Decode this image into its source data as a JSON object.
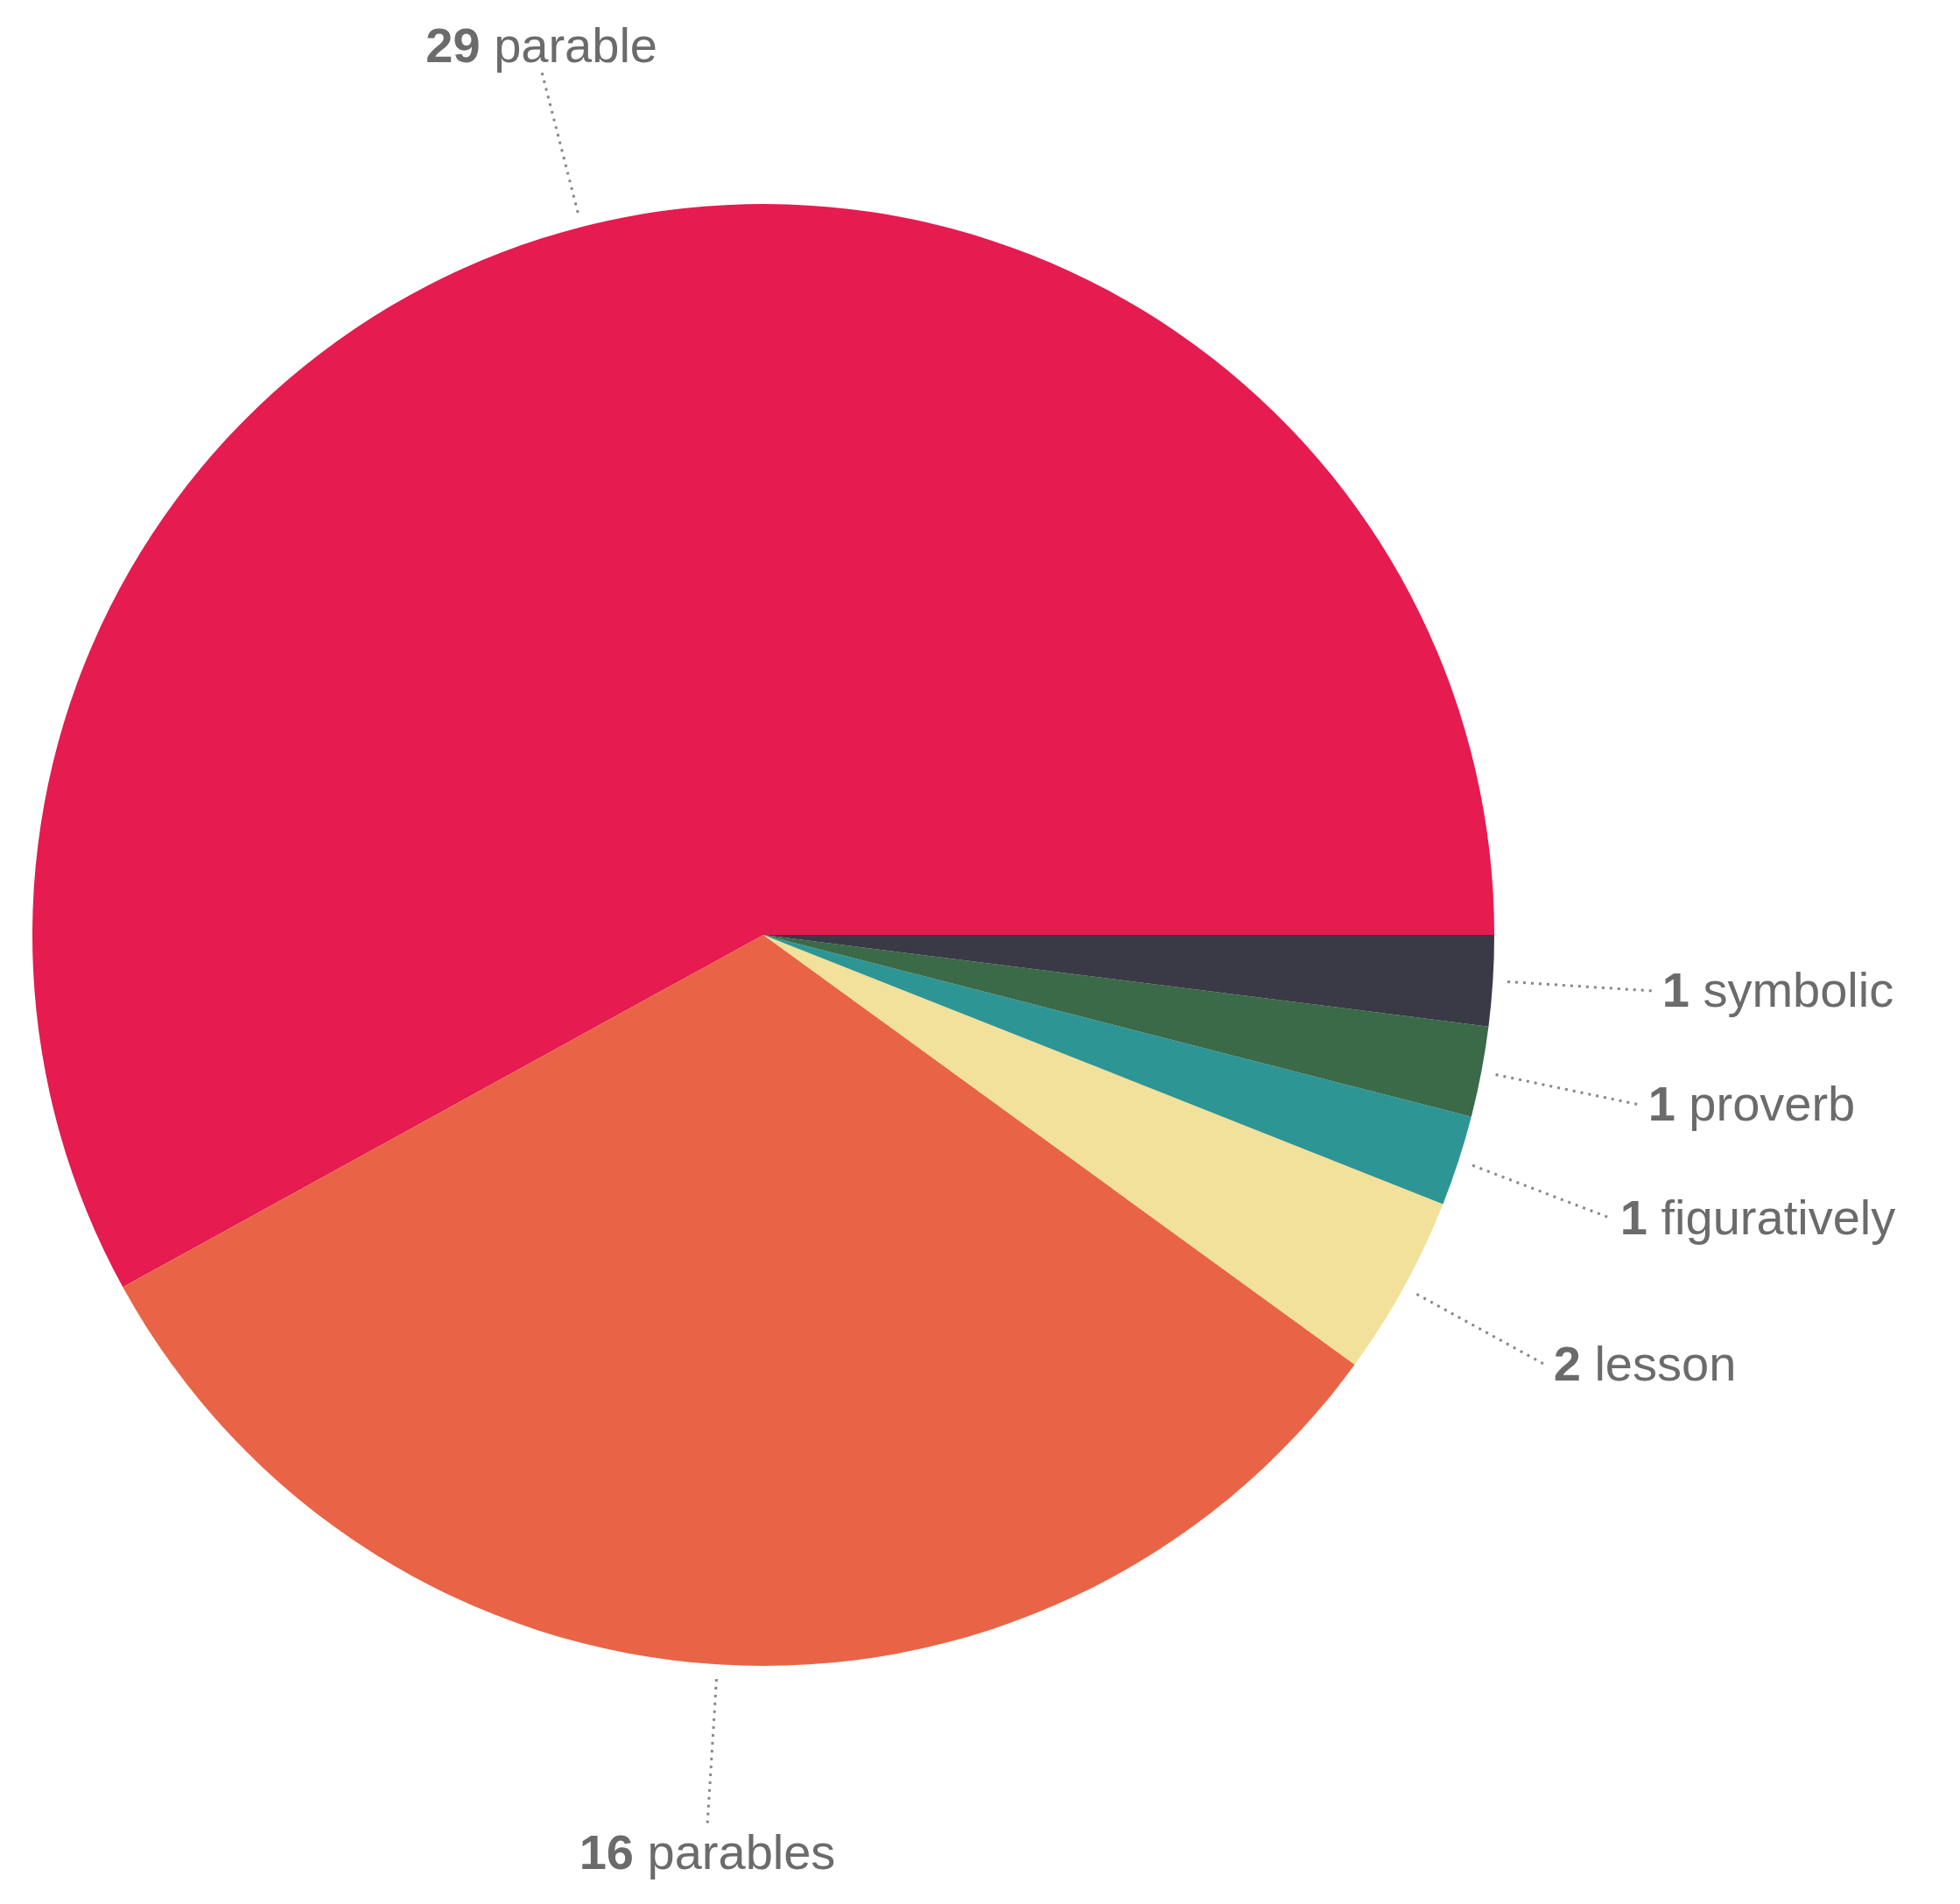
{
  "chart_data": {
    "type": "pie",
    "categories": [
      "parable",
      "parables",
      "lesson",
      "figuratively",
      "proverb",
      "symbolic"
    ],
    "values": [
      29,
      16,
      2,
      1,
      1,
      1
    ],
    "colors": [
      "#e61b4f",
      "#e96446",
      "#f2e19b",
      "#2e9595",
      "#3a6a48",
      "#393a45"
    ],
    "data_labels": true
  }
}
